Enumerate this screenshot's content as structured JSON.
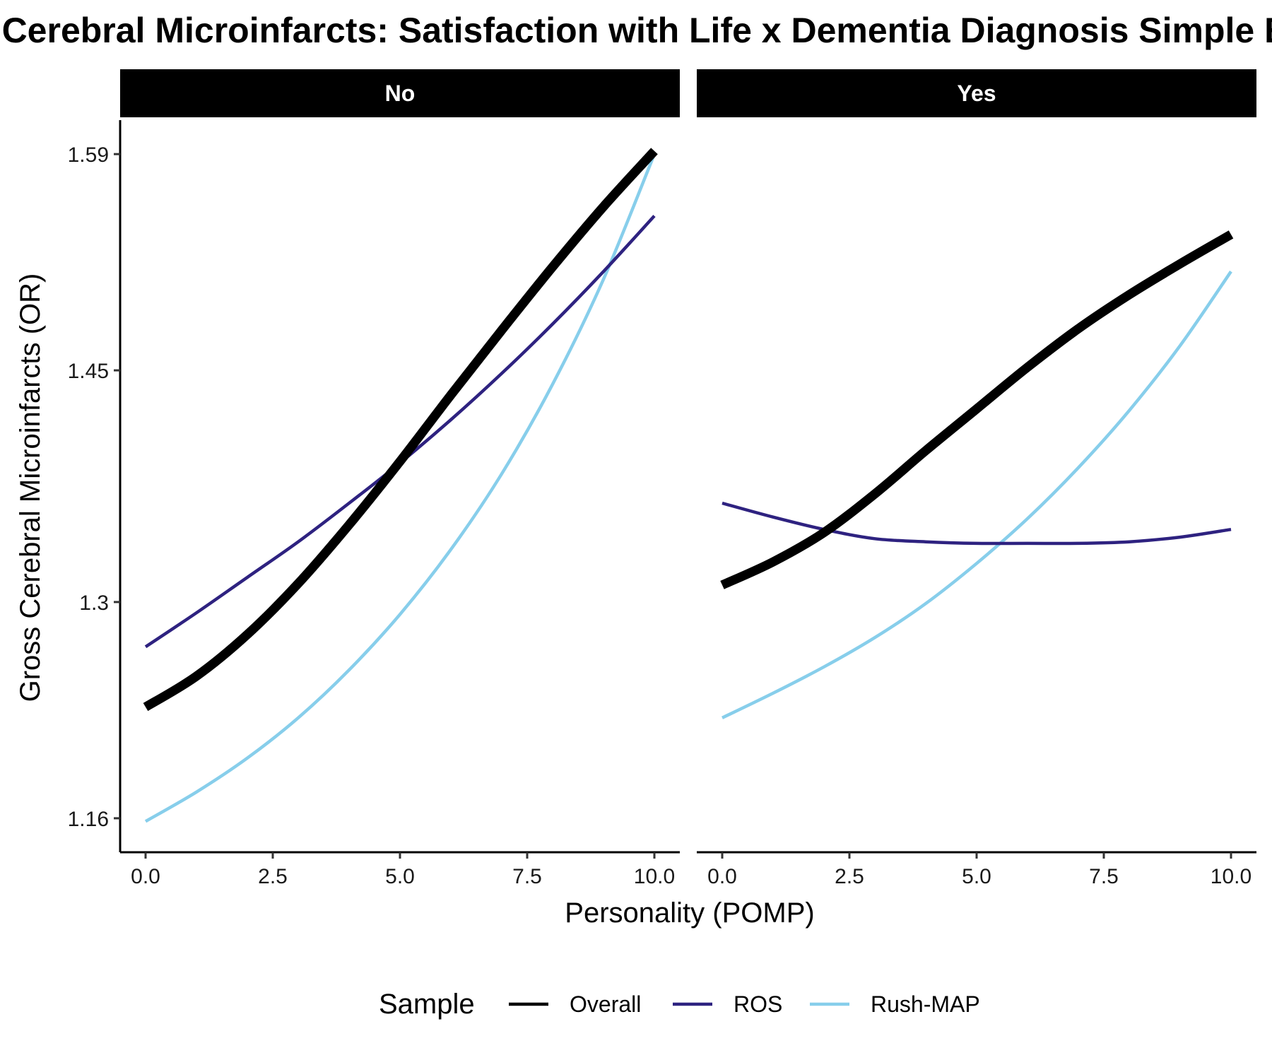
{
  "chart_data": {
    "type": "line",
    "title": "Gross Cerebral Microinfarcts: Satisfaction with Life x Dementia Diagnosis Simple Effects",
    "xlabel": "Personality (POMP)",
    "ylabel": "Gross Cerebral Microinfarcts (OR)",
    "x_ticks": [
      "0.0",
      "2.5",
      "5.0",
      "7.5",
      "10.0"
    ],
    "xlim": [
      -0.5,
      10.5
    ],
    "y_ticks": [
      "1.16",
      "1.3",
      "1.45",
      "1.59"
    ],
    "ylim": [
      1.138,
      1.612
    ],
    "grid": false,
    "legend": {
      "title": "Sample",
      "position": "bottom",
      "entries": [
        "Overall",
        "ROS",
        "Rush-MAP"
      ]
    },
    "colors": {
      "Overall": "#000000",
      "ROS": "#2e2280",
      "Rush-MAP": "#87ceeb"
    },
    "panels": [
      {
        "label": "No",
        "series": [
          {
            "name": "Overall",
            "x": [
              0,
              1,
              2,
              3,
              4,
              5,
              6,
              7,
              8,
              9,
              10
            ],
            "y": [
              1.232,
              1.252,
              1.279,
              1.312,
              1.35,
              1.391,
              1.434,
              1.476,
              1.517,
              1.556,
              1.592
            ]
          },
          {
            "name": "ROS",
            "x": [
              0,
              1,
              2,
              3,
              4,
              5,
              6,
              7,
              8,
              9,
              10
            ],
            "y": [
              1.271,
              1.293,
              1.316,
              1.339,
              1.364,
              1.39,
              1.418,
              1.448,
              1.48,
              1.514,
              1.55
            ]
          },
          {
            "name": "Rush-MAP",
            "x": [
              0,
              1,
              2,
              3,
              4,
              5,
              6,
              7,
              8,
              9,
              10
            ],
            "y": [
              1.158,
              1.177,
              1.199,
              1.225,
              1.256,
              1.292,
              1.334,
              1.383,
              1.441,
              1.509,
              1.59
            ]
          }
        ]
      },
      {
        "label": "Yes",
        "series": [
          {
            "name": "Overall",
            "x": [
              0,
              1,
              2,
              3,
              4,
              5,
              6,
              7,
              8,
              9,
              10
            ],
            "y": [
              1.311,
              1.326,
              1.345,
              1.37,
              1.398,
              1.425,
              1.452,
              1.477,
              1.499,
              1.519,
              1.538
            ]
          },
          {
            "name": "ROS",
            "x": [
              0,
              1,
              2,
              3,
              4,
              5,
              6,
              7,
              8,
              9,
              10
            ],
            "y": [
              1.364,
              1.355,
              1.347,
              1.341,
              1.339,
              1.338,
              1.338,
              1.338,
              1.339,
              1.342,
              1.347
            ]
          },
          {
            "name": "Rush-MAP",
            "x": [
              0,
              1,
              2,
              3,
              4,
              5,
              6,
              7,
              8,
              9,
              10
            ],
            "y": [
              1.225,
              1.241,
              1.258,
              1.277,
              1.299,
              1.325,
              1.354,
              1.387,
              1.424,
              1.466,
              1.514
            ]
          }
        ]
      }
    ]
  }
}
